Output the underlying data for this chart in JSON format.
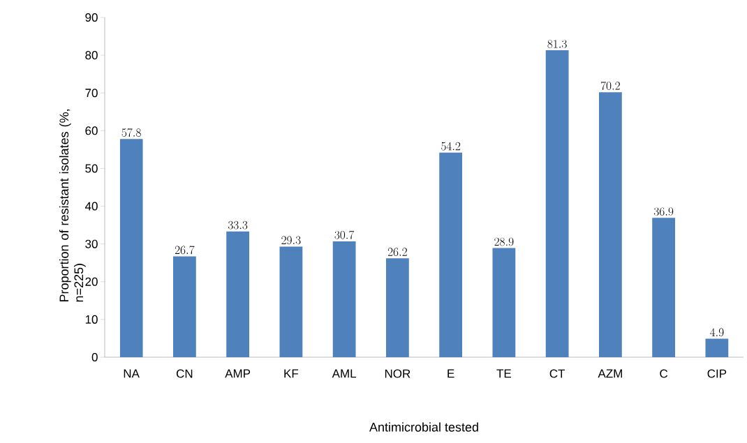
{
  "chart_data": {
    "type": "bar",
    "categories": [
      "NA",
      "CN",
      "AMP",
      "KF",
      "AML",
      "NOR",
      "E",
      "TE",
      "CT",
      "AZM",
      "C",
      "CIP"
    ],
    "values": [
      57.8,
      26.7,
      33.3,
      29.3,
      30.7,
      26.2,
      54.2,
      28.9,
      81.3,
      70.2,
      36.9,
      4.9
    ],
    "color": "#4f81bd",
    "xlabel": "Antimicrobial tested",
    "ylabel": "Proportion of resistant isolates (%, n=225)",
    "ylim": [
      0,
      90
    ],
    "yticks": [
      0,
      10,
      20,
      30,
      40,
      50,
      60,
      70,
      80,
      90
    ],
    "data_labels": true
  }
}
